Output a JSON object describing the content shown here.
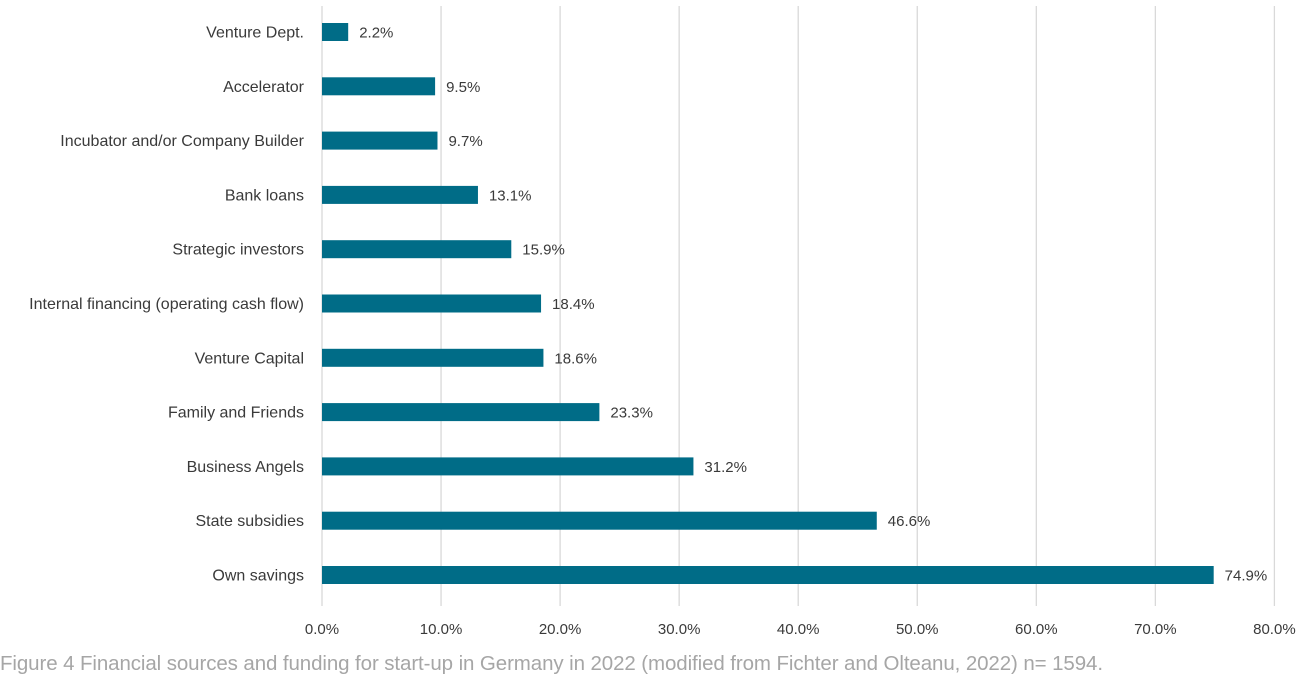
{
  "caption": "Figure 4 Financial sources and funding for start-up in Germany in 2022 (modified from Fichter and Olteanu, 2022) n= 1594.",
  "colors": {
    "bar": "#006c87",
    "grid": "#d9d9d9",
    "text": "#3a3a3a",
    "caption": "#a6a6a6"
  },
  "chart_data": {
    "type": "bar",
    "orientation": "horizontal",
    "title": "",
    "xlabel": "",
    "ylabel": "",
    "xlim": [
      0,
      80
    ],
    "grid": true,
    "legend": "none",
    "x_ticks": [
      "0.0%",
      "10.0%",
      "20.0%",
      "30.0%",
      "40.0%",
      "50.0%",
      "60.0%",
      "70.0%",
      "80.0%"
    ],
    "categories": [
      "Venture Dept.",
      "Accelerator",
      "Incubator and/or Company Builder",
      "Bank loans",
      "Strategic investors",
      "Internal financing (operating cash flow)",
      "Venture Capital",
      "Family and Friends",
      "Business Angels",
      "State subsidies",
      "Own savings"
    ],
    "values": [
      2.2,
      9.5,
      9.7,
      13.1,
      15.9,
      18.4,
      18.6,
      23.3,
      31.2,
      46.6,
      74.9
    ],
    "data_labels": [
      "2.2%",
      "9.5%",
      "9.7%",
      "13.1%",
      "15.9%",
      "18.4%",
      "18.6%",
      "23.3%",
      "31.2%",
      "46.6%",
      "74.9%"
    ]
  }
}
